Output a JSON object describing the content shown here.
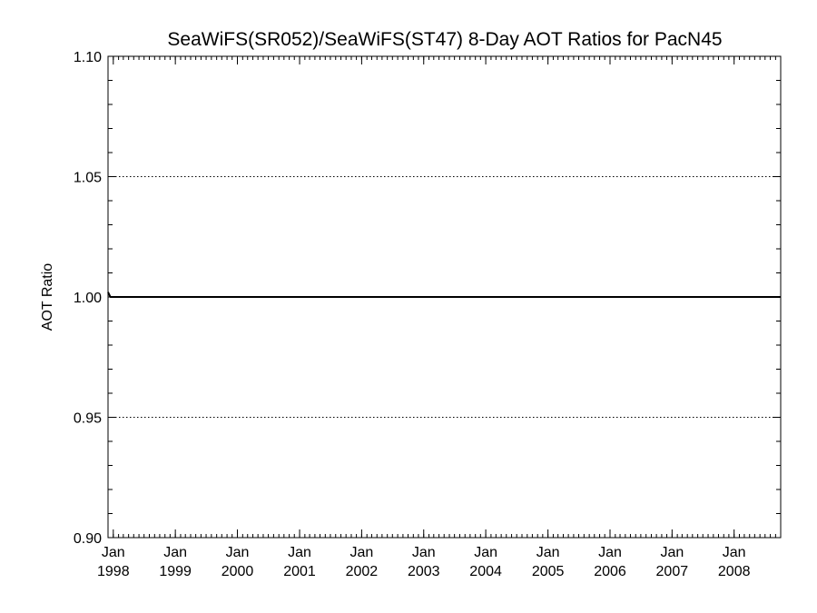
{
  "chart_data": {
    "type": "line",
    "title": "SeaWiFS(SR052)/SeaWiFS(ST47) 8-Day AOT Ratios for PacN45",
    "xlabel": "",
    "ylabel": "AOT Ratio",
    "ylim": [
      0.9,
      1.1
    ],
    "xlim": [
      "1997-12-01",
      "2008-10-01"
    ],
    "grid": "dotted horizontal lines at major y ticks",
    "y_major_ticks": [
      "0.90",
      "0.95",
      "1.00",
      "1.05",
      "1.10"
    ],
    "x_ticks": [
      {
        "date": "1998-01-01",
        "month": "Jan",
        "year": "1998"
      },
      {
        "date": "1999-01-01",
        "month": "Jan",
        "year": "1999"
      },
      {
        "date": "2000-01-01",
        "month": "Jan",
        "year": "2000"
      },
      {
        "date": "2001-01-01",
        "month": "Jan",
        "year": "2001"
      },
      {
        "date": "2002-01-01",
        "month": "Jan",
        "year": "2002"
      },
      {
        "date": "2003-01-01",
        "month": "Jan",
        "year": "2003"
      },
      {
        "date": "2004-01-01",
        "month": "Jan",
        "year": "2004"
      },
      {
        "date": "2005-01-01",
        "month": "Jan",
        "year": "2005"
      },
      {
        "date": "2006-01-01",
        "month": "Jan",
        "year": "2006"
      },
      {
        "date": "2007-01-01",
        "month": "Jan",
        "year": "2007"
      },
      {
        "date": "2008-01-01",
        "month": "Jan",
        "year": "2008"
      }
    ],
    "series": [
      {
        "color": "#000000",
        "x": [
          "1997-12-01",
          "1997-12-15",
          "1998-06-01",
          "1999-01-01",
          "2000-01-01",
          "2001-01-01",
          "2002-01-01",
          "2003-01-01",
          "2004-01-01",
          "2005-01-01",
          "2006-01-01",
          "2007-01-01",
          "2008-01-01",
          "2008-10-01"
        ],
        "values": [
          1.002,
          1.0,
          1.0,
          1.0,
          1.0,
          1.0,
          1.0,
          1.0,
          1.0,
          1.0,
          1.0,
          1.0,
          1.0,
          1.0
        ]
      }
    ]
  }
}
